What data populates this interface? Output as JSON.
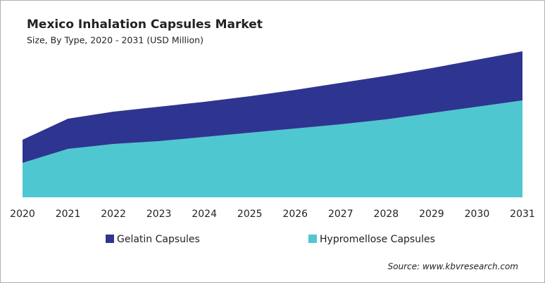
{
  "chart_data": {
    "type": "stacked_area",
    "title": "Mexico Inhalation Capsules Market",
    "subtitle": "Size, By Type, 2020 - 2031 (USD Million)",
    "categories": [
      "2020",
      "2021",
      "2022",
      "2023",
      "2024",
      "2025",
      "2026",
      "2027",
      "2028",
      "2029",
      "2030",
      "2031"
    ],
    "series": [
      {
        "name": "Gelatin Capsules",
        "color": "#2e3590",
        "values": [
          33,
          43,
          46,
          49,
          50,
          52,
          55,
          59,
          62,
          64,
          67,
          70
        ]
      },
      {
        "name": "Hypromellose Capsules",
        "color": "#4fc7d0",
        "values": [
          49,
          69,
          76,
          80,
          86,
          92,
          98,
          104,
          111,
          120,
          129,
          138
        ]
      }
    ],
    "source": "Source: www.kbvresearch.com"
  }
}
